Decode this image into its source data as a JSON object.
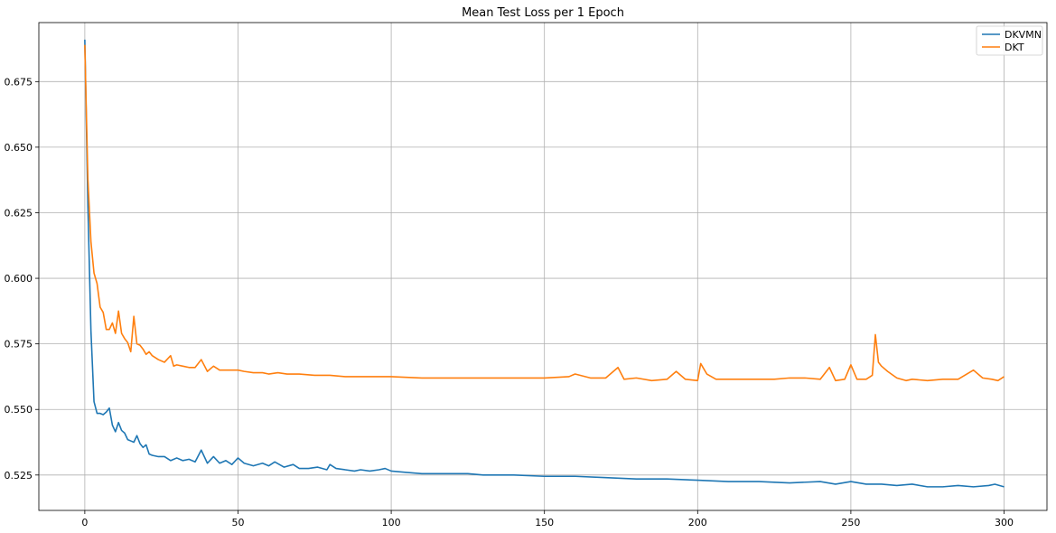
{
  "chart_data": {
    "type": "line",
    "title": "Mean Test Loss per 1 Epoch",
    "xlabel": "",
    "ylabel": "",
    "xlim": [
      -15,
      314
    ],
    "ylim": [
      0.5115,
      0.6975
    ],
    "xticks": [
      0,
      50,
      100,
      150,
      200,
      250,
      300
    ],
    "yticks": [
      0.525,
      0.55,
      0.575,
      0.6,
      0.625,
      0.65,
      0.675
    ],
    "xtick_labels": [
      "0",
      "50",
      "100",
      "150",
      "200",
      "250",
      "300"
    ],
    "ytick_labels": [
      "0.525",
      "0.550",
      "0.575",
      "0.600",
      "0.625",
      "0.650",
      "0.675"
    ],
    "grid": true,
    "legend_position": "top-right",
    "series": [
      {
        "name": "DKVMN",
        "color": "#1f77b4",
        "x": [
          0,
          1,
          2,
          3,
          4,
          5,
          6,
          7,
          8,
          9,
          10,
          11,
          12,
          13,
          14,
          15,
          16,
          17,
          18,
          19,
          20,
          21,
          22,
          24,
          26,
          28,
          30,
          32,
          34,
          36,
          38,
          40,
          42,
          44,
          46,
          48,
          50,
          52,
          55,
          58,
          60,
          62,
          65,
          68,
          70,
          73,
          76,
          79,
          80,
          82,
          85,
          88,
          90,
          93,
          96,
          98,
          100,
          105,
          110,
          115,
          120,
          125,
          130,
          140,
          150,
          160,
          170,
          180,
          190,
          200,
          210,
          220,
          230,
          240,
          245,
          250,
          255,
          260,
          265,
          270,
          275,
          280,
          285,
          290,
          295,
          297,
          300
        ],
        "values": [
          0.691,
          0.628,
          0.58,
          0.553,
          0.5485,
          0.5485,
          0.548,
          0.549,
          0.5505,
          0.544,
          0.5415,
          0.545,
          0.542,
          0.541,
          0.5385,
          0.538,
          0.5375,
          0.54,
          0.537,
          0.5355,
          0.5365,
          0.533,
          0.5325,
          0.532,
          0.532,
          0.5305,
          0.5315,
          0.5305,
          0.531,
          0.53,
          0.5345,
          0.5295,
          0.532,
          0.5295,
          0.5305,
          0.529,
          0.5315,
          0.5295,
          0.5285,
          0.5295,
          0.5285,
          0.53,
          0.528,
          0.529,
          0.5275,
          0.5275,
          0.528,
          0.527,
          0.529,
          0.5275,
          0.527,
          0.5265,
          0.527,
          0.5265,
          0.527,
          0.5275,
          0.5265,
          0.526,
          0.5255,
          0.5255,
          0.5255,
          0.5255,
          0.525,
          0.525,
          0.5245,
          0.5245,
          0.524,
          0.5235,
          0.5235,
          0.523,
          0.5225,
          0.5225,
          0.522,
          0.5225,
          0.5215,
          0.5225,
          0.5215,
          0.5215,
          0.521,
          0.5215,
          0.5205,
          0.5205,
          0.521,
          0.5205,
          0.521,
          0.5215,
          0.5205
        ]
      },
      {
        "name": "DKT",
        "color": "#ff7f0e",
        "x": [
          0,
          1,
          2,
          3,
          4,
          5,
          6,
          7,
          8,
          9,
          10,
          11,
          12,
          13,
          14,
          15,
          16,
          17,
          18,
          19,
          20,
          21,
          22,
          24,
          26,
          28,
          29,
          30,
          32,
          34,
          36,
          38,
          40,
          42,
          44,
          46,
          48,
          50,
          52,
          55,
          58,
          60,
          63,
          66,
          70,
          75,
          80,
          85,
          90,
          95,
          100,
          110,
          120,
          130,
          140,
          150,
          158,
          160,
          165,
          170,
          174,
          176,
          180,
          185,
          190,
          193,
          196,
          200,
          201,
          203,
          206,
          210,
          215,
          220,
          225,
          230,
          235,
          240,
          243,
          245,
          248,
          250,
          252,
          255,
          257,
          258,
          259,
          260,
          262,
          265,
          268,
          270,
          275,
          280,
          285,
          290,
          293,
          296,
          298,
          300
        ],
        "values": [
          0.689,
          0.638,
          0.614,
          0.602,
          0.598,
          0.589,
          0.587,
          0.5805,
          0.5805,
          0.583,
          0.579,
          0.5875,
          0.579,
          0.577,
          0.5755,
          0.572,
          0.5855,
          0.575,
          0.5745,
          0.573,
          0.571,
          0.572,
          0.5705,
          0.569,
          0.568,
          0.5705,
          0.5665,
          0.567,
          0.5665,
          0.566,
          0.566,
          0.569,
          0.5645,
          0.5665,
          0.565,
          0.565,
          0.565,
          0.565,
          0.5645,
          0.564,
          0.564,
          0.5635,
          0.564,
          0.5635,
          0.5635,
          0.563,
          0.563,
          0.5625,
          0.5625,
          0.5625,
          0.5625,
          0.562,
          0.562,
          0.562,
          0.562,
          0.562,
          0.5625,
          0.5635,
          0.562,
          0.562,
          0.566,
          0.5615,
          0.562,
          0.561,
          0.5615,
          0.5645,
          0.5615,
          0.561,
          0.5675,
          0.5635,
          0.5615,
          0.5615,
          0.5615,
          0.5615,
          0.5615,
          0.562,
          0.562,
          0.5615,
          0.566,
          0.561,
          0.5615,
          0.567,
          0.5615,
          0.5615,
          0.563,
          0.5785,
          0.568,
          0.5665,
          0.5645,
          0.562,
          0.561,
          0.5615,
          0.561,
          0.5615,
          0.5615,
          0.565,
          0.562,
          0.5615,
          0.561,
          0.5625
        ]
      }
    ]
  }
}
